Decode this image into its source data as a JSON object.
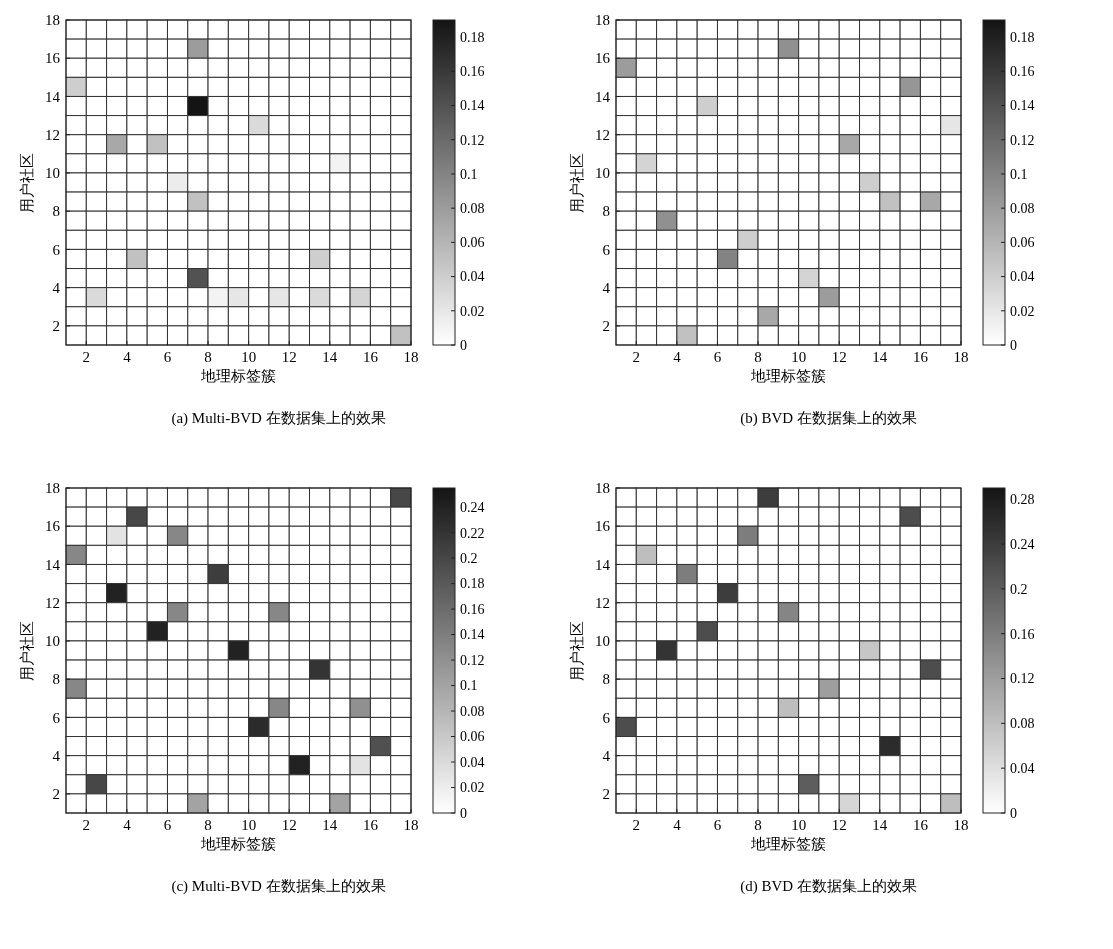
{
  "chart_data": [
    {
      "type": "heatmap",
      "title": "(a) Multi-BVD 在数据集上的效果",
      "xlabel": "地理标签簇",
      "ylabel": "用户社区",
      "xlim": [
        1,
        18
      ],
      "xticks": [
        2,
        4,
        6,
        8,
        10,
        12,
        14,
        16,
        18
      ],
      "ylim": [
        1,
        18
      ],
      "yticks": [
        2,
        4,
        6,
        8,
        10,
        12,
        14,
        16,
        18
      ],
      "clim": [
        0,
        0.19
      ],
      "cticks": [
        0,
        0.02,
        0.04,
        0.06,
        0.08,
        0.1,
        0.12,
        0.14,
        0.16,
        0.18
      ],
      "cells": [
        [
          0,
          0,
          0,
          0,
          0,
          0,
          0,
          0,
          0,
          0,
          0,
          0,
          0,
          0,
          0,
          0,
          0
        ],
        [
          0,
          0,
          0,
          0,
          0,
          0,
          0.08,
          0,
          0,
          0,
          0,
          0,
          0,
          0,
          0,
          0,
          0
        ],
        [
          0,
          0,
          0,
          0,
          0,
          0,
          0,
          0,
          0,
          0,
          0,
          0,
          0,
          0,
          0,
          0,
          0
        ],
        [
          0.04,
          0,
          0,
          0,
          0,
          0,
          0,
          0,
          0,
          0,
          0,
          0,
          0,
          0,
          0,
          0,
          0
        ],
        [
          0,
          0,
          0,
          0,
          0,
          0,
          0.19,
          0,
          0,
          0,
          0,
          0,
          0,
          0,
          0,
          0,
          0
        ],
        [
          0,
          0,
          0,
          0,
          0,
          0,
          0,
          0,
          0,
          0.03,
          0,
          0,
          0,
          0,
          0,
          0,
          0
        ],
        [
          0,
          0,
          0.07,
          0,
          0.05,
          0,
          0,
          0,
          0,
          0,
          0,
          0,
          0,
          0,
          0,
          0,
          0
        ],
        [
          0,
          0,
          0,
          0,
          0,
          0,
          0,
          0,
          0,
          0,
          0,
          0,
          0,
          0.01,
          0,
          0,
          0
        ],
        [
          0,
          0,
          0,
          0,
          0,
          0.015,
          0,
          0,
          0,
          0,
          0,
          0,
          0,
          0,
          0,
          0,
          0
        ],
        [
          0,
          0,
          0,
          0,
          0,
          0,
          0.05,
          0,
          0,
          0,
          0,
          0,
          0,
          0,
          0,
          0,
          0
        ],
        [
          0,
          0,
          0,
          0,
          0,
          0,
          0,
          0,
          0,
          0,
          0,
          0,
          0,
          0,
          0,
          0,
          0
        ],
        [
          0,
          0,
          0,
          0,
          0,
          0,
          0,
          0,
          0,
          0,
          0,
          0,
          0,
          0,
          0,
          0,
          0
        ],
        [
          0,
          0,
          0,
          0.05,
          0,
          0,
          0,
          0,
          0,
          0,
          0,
          0,
          0.04,
          0,
          0,
          0,
          0
        ],
        [
          0,
          0,
          0,
          0,
          0,
          0,
          0.14,
          0,
          0,
          0,
          0,
          0,
          0,
          0,
          0,
          0,
          0
        ],
        [
          0,
          0.03,
          0,
          0,
          0,
          0,
          0,
          0.01,
          0.02,
          0,
          0.02,
          0,
          0.03,
          0,
          0.035,
          0,
          0
        ],
        [
          0,
          0,
          0,
          0,
          0,
          0,
          0,
          0,
          0,
          0,
          0,
          0,
          0,
          0,
          0,
          0,
          0
        ],
        [
          0,
          0,
          0,
          0,
          0,
          0,
          0,
          0,
          0,
          0,
          0,
          0,
          0,
          0,
          0,
          0,
          0.05
        ]
      ]
    },
    {
      "type": "heatmap",
      "title": "(b) BVD 在数据集上的效果",
      "xlabel": "地理标签簇",
      "ylabel": "用户社区",
      "xlim": [
        1,
        18
      ],
      "xticks": [
        2,
        4,
        6,
        8,
        10,
        12,
        14,
        16,
        18
      ],
      "ylim": [
        1,
        18
      ],
      "yticks": [
        2,
        4,
        6,
        8,
        10,
        12,
        14,
        16,
        18
      ],
      "clim": [
        0,
        0.19
      ],
      "cticks": [
        0,
        0.02,
        0.04,
        0.06,
        0.08,
        0.1,
        0.12,
        0.14,
        0.16,
        0.18
      ],
      "cells": [
        [
          0,
          0,
          0,
          0,
          0,
          0,
          0,
          0,
          0,
          0,
          0,
          0,
          0,
          0,
          0,
          0,
          0
        ],
        [
          0,
          0,
          0,
          0,
          0,
          0,
          0,
          0,
          0.09,
          0,
          0,
          0,
          0,
          0,
          0,
          0,
          0
        ],
        [
          0.08,
          0,
          0,
          0,
          0,
          0,
          0,
          0,
          0,
          0,
          0,
          0,
          0,
          0,
          0,
          0,
          0
        ],
        [
          0,
          0,
          0,
          0,
          0,
          0,
          0,
          0,
          0,
          0,
          0,
          0,
          0,
          0,
          0.085,
          0,
          0
        ],
        [
          0,
          0,
          0,
          0,
          0.04,
          0,
          0,
          0,
          0,
          0,
          0,
          0,
          0,
          0,
          0,
          0,
          0
        ],
        [
          0,
          0,
          0,
          0,
          0,
          0,
          0,
          0,
          0,
          0,
          0,
          0,
          0,
          0,
          0,
          0,
          0.02
        ],
        [
          0,
          0,
          0,
          0,
          0,
          0,
          0,
          0,
          0,
          0,
          0,
          0.07,
          0,
          0,
          0,
          0,
          0
        ],
        [
          0,
          0.035,
          0,
          0,
          0,
          0,
          0,
          0,
          0,
          0,
          0,
          0,
          0,
          0,
          0,
          0,
          0
        ],
        [
          0,
          0,
          0,
          0,
          0,
          0,
          0,
          0,
          0,
          0,
          0,
          0,
          0.04,
          0,
          0,
          0,
          0
        ],
        [
          0,
          0,
          0,
          0,
          0,
          0,
          0,
          0,
          0,
          0,
          0,
          0,
          0,
          0.05,
          0,
          0.07,
          0
        ],
        [
          0,
          0,
          0.09,
          0,
          0,
          0,
          0,
          0,
          0,
          0,
          0,
          0,
          0,
          0,
          0,
          0,
          0
        ],
        [
          0,
          0,
          0,
          0,
          0,
          0,
          0.04,
          0,
          0,
          0,
          0,
          0,
          0,
          0,
          0,
          0,
          0
        ],
        [
          0,
          0,
          0,
          0,
          0,
          0.1,
          0,
          0,
          0,
          0,
          0,
          0,
          0,
          0,
          0,
          0,
          0
        ],
        [
          0,
          0,
          0,
          0,
          0,
          0,
          0,
          0,
          0,
          0.035,
          0,
          0,
          0,
          0,
          0,
          0,
          0
        ],
        [
          0,
          0,
          0,
          0,
          0,
          0,
          0,
          0,
          0,
          0,
          0.08,
          0,
          0,
          0,
          0,
          0,
          0
        ],
        [
          0,
          0,
          0,
          0,
          0,
          0,
          0,
          0.07,
          0,
          0,
          0,
          0,
          0,
          0,
          0,
          0,
          0
        ],
        [
          0,
          0,
          0,
          0.05,
          0,
          0,
          0,
          0,
          0,
          0,
          0,
          0,
          0,
          0,
          0,
          0,
          0
        ]
      ]
    },
    {
      "type": "heatmap",
      "title": "(c) Multi-BVD 在数据集上的效果",
      "xlabel": "地理标签簇",
      "ylabel": "用户社区",
      "xlim": [
        1,
        18
      ],
      "xticks": [
        2,
        4,
        6,
        8,
        10,
        12,
        14,
        16,
        18
      ],
      "ylim": [
        1,
        18
      ],
      "yticks": [
        2,
        4,
        6,
        8,
        10,
        12,
        14,
        16,
        18
      ],
      "clim": [
        0,
        0.255
      ],
      "cticks": [
        0,
        0.02,
        0.04,
        0.06,
        0.08,
        0.1,
        0.12,
        0.14,
        0.16,
        0.18,
        0.2,
        0.22,
        0.24
      ],
      "cells": [
        [
          0,
          0,
          0,
          0,
          0,
          0,
          0,
          0,
          0,
          0,
          0,
          0,
          0,
          0,
          0,
          0,
          0.2
        ],
        [
          0,
          0,
          0,
          0.2,
          0,
          0,
          0,
          0,
          0,
          0,
          0,
          0,
          0,
          0,
          0,
          0,
          0
        ],
        [
          0,
          0,
          0.03,
          0,
          0,
          0.13,
          0,
          0,
          0,
          0,
          0,
          0,
          0,
          0,
          0,
          0,
          0
        ],
        [
          0.13,
          0,
          0,
          0,
          0,
          0,
          0,
          0,
          0,
          0,
          0,
          0,
          0,
          0,
          0,
          0,
          0
        ],
        [
          0,
          0,
          0,
          0,
          0,
          0,
          0,
          0.21,
          0,
          0,
          0,
          0,
          0,
          0,
          0,
          0,
          0
        ],
        [
          0,
          0,
          0.24,
          0,
          0,
          0,
          0,
          0,
          0,
          0,
          0,
          0,
          0,
          0,
          0,
          0,
          0
        ],
        [
          0,
          0,
          0,
          0,
          0,
          0.13,
          0,
          0,
          0,
          0,
          0.13,
          0,
          0,
          0,
          0,
          0,
          0
        ],
        [
          0,
          0,
          0,
          0,
          0.24,
          0,
          0,
          0,
          0,
          0,
          0,
          0,
          0,
          0,
          0,
          0,
          0
        ],
        [
          0,
          0,
          0,
          0,
          0,
          0,
          0,
          0,
          0.24,
          0,
          0,
          0,
          0,
          0,
          0,
          0,
          0
        ],
        [
          0,
          0,
          0,
          0,
          0,
          0,
          0,
          0,
          0,
          0,
          0,
          0,
          0.22,
          0,
          0,
          0,
          0
        ],
        [
          0.13,
          0,
          0,
          0,
          0,
          0,
          0,
          0,
          0,
          0,
          0,
          0,
          0,
          0,
          0,
          0,
          0
        ],
        [
          0,
          0,
          0,
          0,
          0,
          0,
          0,
          0,
          0,
          0,
          0.13,
          0,
          0,
          0,
          0.12,
          0,
          0
        ],
        [
          0,
          0,
          0,
          0,
          0,
          0,
          0,
          0,
          0,
          0.23,
          0,
          0,
          0,
          0,
          0,
          0,
          0
        ],
        [
          0,
          0,
          0,
          0,
          0,
          0,
          0,
          0,
          0,
          0,
          0,
          0,
          0,
          0,
          0,
          0.19,
          0
        ],
        [
          0,
          0,
          0,
          0,
          0,
          0,
          0,
          0,
          0,
          0,
          0,
          0.24,
          0,
          0,
          0.03,
          0,
          0
        ],
        [
          0,
          0.2,
          0,
          0,
          0,
          0,
          0,
          0,
          0,
          0,
          0,
          0,
          0,
          0,
          0,
          0,
          0
        ],
        [
          0,
          0,
          0,
          0,
          0,
          0,
          0.1,
          0,
          0,
          0,
          0,
          0,
          0,
          0.1,
          0,
          0,
          0
        ]
      ]
    },
    {
      "type": "heatmap",
      "title": "(d) BVD 在数据集上的效果",
      "xlabel": "地理标签簇",
      "ylabel": "用户社区",
      "xlim": [
        1,
        18
      ],
      "xticks": [
        2,
        4,
        6,
        8,
        10,
        12,
        14,
        16,
        18
      ],
      "ylim": [
        1,
        18
      ],
      "yticks": [
        2,
        4,
        6,
        8,
        10,
        12,
        14,
        16,
        18
      ],
      "clim": [
        0,
        0.29
      ],
      "cticks": [
        0,
        0.04,
        0.08,
        0.12,
        0.16,
        0.2,
        0.24,
        0.28
      ],
      "cells": [
        [
          0,
          0,
          0,
          0,
          0,
          0,
          0,
          0.24,
          0,
          0,
          0,
          0,
          0,
          0,
          0,
          0,
          0
        ],
        [
          0,
          0,
          0,
          0,
          0,
          0,
          0,
          0,
          0,
          0,
          0,
          0,
          0,
          0,
          0.22,
          0,
          0
        ],
        [
          0,
          0,
          0,
          0,
          0,
          0,
          0.16,
          0,
          0,
          0,
          0,
          0,
          0,
          0,
          0,
          0,
          0
        ],
        [
          0,
          0.08,
          0,
          0,
          0,
          0,
          0,
          0,
          0,
          0,
          0,
          0,
          0,
          0,
          0,
          0,
          0
        ],
        [
          0,
          0,
          0,
          0.16,
          0,
          0,
          0,
          0,
          0,
          0,
          0,
          0,
          0,
          0,
          0,
          0,
          0
        ],
        [
          0,
          0,
          0,
          0,
          0,
          0.24,
          0,
          0,
          0,
          0,
          0,
          0,
          0,
          0,
          0,
          0,
          0
        ],
        [
          0,
          0,
          0,
          0,
          0,
          0,
          0,
          0,
          0.15,
          0,
          0,
          0,
          0,
          0,
          0,
          0,
          0
        ],
        [
          0,
          0,
          0,
          0,
          0.22,
          0,
          0,
          0,
          0,
          0,
          0,
          0,
          0,
          0,
          0,
          0,
          0
        ],
        [
          0,
          0,
          0.25,
          0,
          0,
          0,
          0,
          0,
          0,
          0,
          0,
          0,
          0.07,
          0,
          0,
          0,
          0
        ],
        [
          0,
          0,
          0,
          0,
          0,
          0,
          0,
          0,
          0,
          0,
          0,
          0,
          0,
          0,
          0,
          0.22,
          0
        ],
        [
          0,
          0,
          0,
          0,
          0,
          0,
          0,
          0,
          0,
          0,
          0.12,
          0,
          0,
          0,
          0,
          0,
          0
        ],
        [
          0,
          0,
          0,
          0,
          0,
          0,
          0,
          0,
          0.08,
          0,
          0,
          0,
          0,
          0,
          0,
          0,
          0
        ],
        [
          0.22,
          0,
          0,
          0,
          0,
          0,
          0,
          0,
          0,
          0,
          0,
          0,
          0,
          0,
          0,
          0,
          0
        ],
        [
          0,
          0,
          0,
          0,
          0,
          0,
          0,
          0,
          0,
          0,
          0,
          0,
          0,
          0.26,
          0,
          0,
          0
        ],
        [
          0,
          0,
          0,
          0,
          0,
          0,
          0,
          0,
          0,
          0,
          0,
          0,
          0,
          0,
          0,
          0,
          0
        ],
        [
          0,
          0,
          0,
          0,
          0,
          0,
          0,
          0,
          0,
          0.2,
          0,
          0,
          0,
          0,
          0,
          0,
          0
        ],
        [
          0,
          0,
          0,
          0,
          0,
          0,
          0,
          0,
          0,
          0,
          0,
          0.05,
          0,
          0,
          0,
          0,
          0.08
        ]
      ]
    }
  ]
}
